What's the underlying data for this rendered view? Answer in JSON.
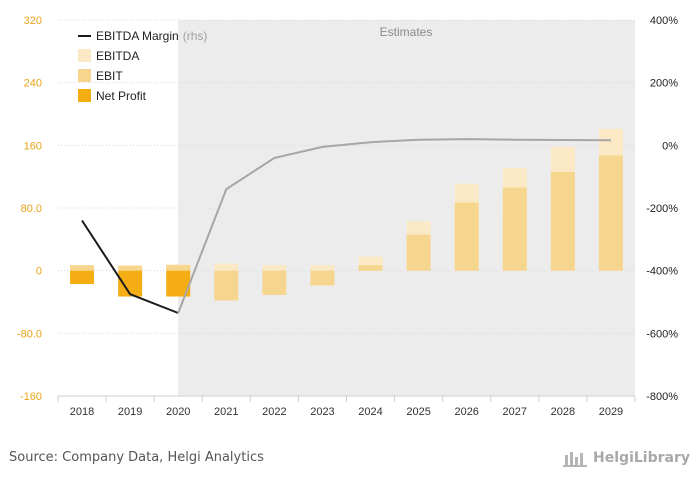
{
  "chart_data": {
    "type": "bar",
    "categories": [
      "2018",
      "2019",
      "2020",
      "2021",
      "2022",
      "2023",
      "2024",
      "2025",
      "2026",
      "2027",
      "2028",
      "2029"
    ],
    "estimates_from_index": 3,
    "estimates_label": "Estimates",
    "ylim_left": [
      -160,
      320
    ],
    "yticks_left": [
      "320",
      "240",
      "160",
      "80.0",
      "0",
      "-80.0",
      "-160"
    ],
    "ylim_right": [
      -800,
      400
    ],
    "yticks_right": [
      "400%",
      "200%",
      "0%",
      "-200%",
      "-400%",
      "-600%",
      "-800%"
    ],
    "series": [
      {
        "name": "EBITDA",
        "kind": "bar",
        "color": "#fbe8c4",
        "axis": "left",
        "values": [
          7,
          7,
          8,
          9,
          7,
          7,
          18,
          63,
          111,
          131,
          158,
          181
        ]
      },
      {
        "name": "EBIT",
        "kind": "bar",
        "color": "#f6d68e",
        "axis": "left",
        "values": [
          7,
          6,
          7,
          -38,
          -31,
          -19,
          7,
          46,
          87,
          106,
          126,
          147
        ]
      },
      {
        "name": "Net Profit",
        "kind": "bar",
        "color": "#f5ad14",
        "axis": "left",
        "values": [
          -17,
          -33,
          -33,
          null,
          null,
          null,
          null,
          null,
          null,
          null,
          null,
          null
        ]
      },
      {
        "name": "EBITDA Margin",
        "suffix": "(rhs)",
        "kind": "line",
        "axis": "right",
        "color": "#1a1a1a",
        "estimate_color": "#a6a6a6",
        "values": [
          -240,
          -475,
          -535,
          -140,
          -40,
          -5,
          10,
          18,
          20,
          18,
          17,
          16
        ]
      }
    ],
    "legend_position": "top-left"
  },
  "footer": {
    "source": "Source: Company Data, Helgi Analytics",
    "brand": "HelgiLibrary"
  }
}
